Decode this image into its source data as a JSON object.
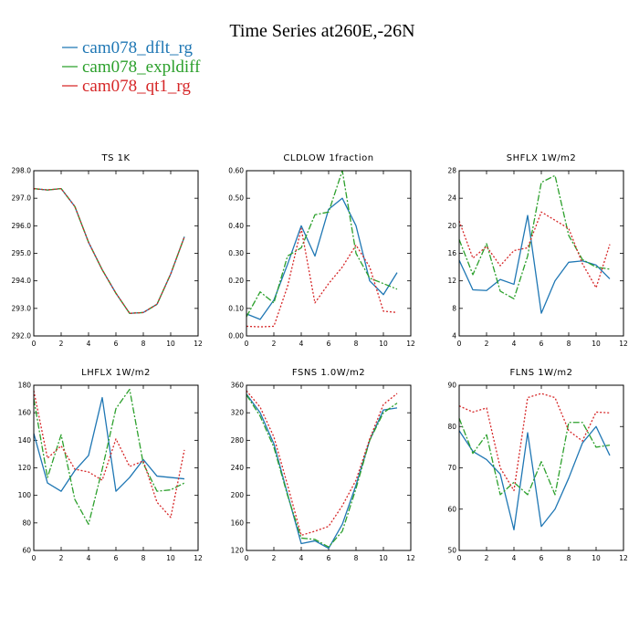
{
  "figure": {
    "title": "Time Series at260E,-26N",
    "legend": [
      {
        "label": "cam078_dflt_rg",
        "color": "#1f77b4"
      },
      {
        "label": "cam078_expldiff",
        "color": "#2ca02c"
      },
      {
        "label": "cam078_qt1_rg",
        "color": "#d62728"
      }
    ]
  },
  "chart_data": [
    {
      "type": "line",
      "title": "TS   1K",
      "x": [
        0,
        1,
        2,
        3,
        4,
        5,
        6,
        7,
        8,
        9,
        10,
        11
      ],
      "xlim": [
        0,
        12
      ],
      "xticks": [
        "0",
        "2",
        "4",
        "6",
        "8",
        "10",
        "12"
      ],
      "ylim": [
        292,
        298
      ],
      "yticks": [
        "292.0",
        "293.0",
        "294.0",
        "295.0",
        "296.0",
        "297.0",
        "298.0"
      ],
      "series": [
        {
          "color": "#1f77b4",
          "dash": "solid",
          "values": [
            297.35,
            297.3,
            297.35,
            296.7,
            295.4,
            294.4,
            293.55,
            292.82,
            292.85,
            293.15,
            294.25,
            295.6
          ]
        },
        {
          "color": "#2ca02c",
          "dash": "dashdot",
          "values": [
            297.35,
            297.3,
            297.35,
            296.7,
            295.4,
            294.4,
            293.55,
            292.82,
            292.85,
            293.15,
            294.25,
            295.6
          ]
        },
        {
          "color": "#d62728",
          "dash": "dot",
          "values": [
            297.35,
            297.3,
            297.35,
            296.7,
            295.4,
            294.4,
            293.55,
            292.82,
            292.85,
            293.15,
            294.25,
            295.6
          ]
        }
      ]
    },
    {
      "type": "line",
      "title": "CLDLOW   1fraction",
      "x": [
        0,
        1,
        2,
        3,
        4,
        5,
        6,
        7,
        8,
        9,
        10,
        11
      ],
      "xlim": [
        0,
        12
      ],
      "xticks": [
        "0",
        "2",
        "4",
        "6",
        "8",
        "10",
        "12"
      ],
      "ylim": [
        0,
        0.6
      ],
      "yticks": [
        "0.00",
        "0.10",
        "0.20",
        "0.30",
        "0.40",
        "0.50",
        "0.60"
      ],
      "series": [
        {
          "color": "#1f77b4",
          "dash": "solid",
          "values": [
            0.08,
            0.06,
            0.13,
            0.26,
            0.4,
            0.29,
            0.46,
            0.5,
            0.4,
            0.2,
            0.15,
            0.23
          ]
        },
        {
          "color": "#2ca02c",
          "dash": "dashdot",
          "values": [
            0.07,
            0.16,
            0.12,
            0.29,
            0.32,
            0.44,
            0.45,
            0.6,
            0.3,
            0.21,
            0.19,
            0.17
          ]
        },
        {
          "color": "#d62728",
          "dash": "dot",
          "values": [
            0.035,
            0.033,
            0.035,
            0.18,
            0.39,
            0.12,
            0.19,
            0.25,
            0.33,
            0.25,
            0.09,
            0.085
          ]
        }
      ]
    },
    {
      "type": "line",
      "title": "SHFLX   1W/m2",
      "x": [
        0,
        1,
        2,
        3,
        4,
        5,
        6,
        7,
        8,
        9,
        10,
        11
      ],
      "xlim": [
        0,
        12
      ],
      "xticks": [
        "0",
        "2",
        "4",
        "6",
        "8",
        "10",
        "12"
      ],
      "ylim": [
        4,
        28
      ],
      "yticks": [
        "4",
        "8",
        "12",
        "16",
        "20",
        "24",
        "28"
      ],
      "series": [
        {
          "color": "#1f77b4",
          "dash": "solid",
          "values": [
            15,
            10.7,
            10.6,
            12.2,
            11.5,
            21.5,
            7.3,
            12,
            14.7,
            14.9,
            14.3,
            12.3
          ]
        },
        {
          "color": "#2ca02c",
          "dash": "dashdot",
          "values": [
            18,
            12.9,
            17.4,
            10.5,
            9.4,
            15.6,
            26.3,
            27.3,
            18.6,
            15.1,
            14,
            13.7
          ]
        },
        {
          "color": "#d62728",
          "dash": "dot",
          "values": [
            20.7,
            15.3,
            17,
            14.2,
            16.4,
            16.8,
            22,
            20.8,
            19.6,
            14.5,
            11,
            17.3
          ]
        }
      ]
    },
    {
      "type": "line",
      "title": "LHFLX   1W/m2",
      "x": [
        0,
        1,
        2,
        3,
        4,
        5,
        6,
        7,
        8,
        9,
        10,
        11
      ],
      "xlim": [
        0,
        12
      ],
      "xticks": [
        "0",
        "2",
        "4",
        "6",
        "8",
        "10",
        "12"
      ],
      "ylim": [
        60,
        180
      ],
      "yticks": [
        "60",
        "80",
        "100",
        "120",
        "140",
        "160",
        "180"
      ],
      "series": [
        {
          "color": "#1f77b4",
          "dash": "solid",
          "values": [
            145,
            109,
            103,
            118,
            129,
            171,
            103,
            113,
            126,
            114,
            113,
            112
          ]
        },
        {
          "color": "#2ca02c",
          "dash": "dashdot",
          "values": [
            170,
            113,
            144,
            97,
            79,
            119,
            163,
            177,
            123,
            103,
            104,
            109
          ]
        },
        {
          "color": "#d62728",
          "dash": "dot",
          "values": [
            176,
            127,
            136,
            119,
            117,
            111,
            141,
            121,
            125,
            95,
            84,
            133
          ]
        }
      ]
    },
    {
      "type": "line",
      "title": "FSNS   1.0W/m2",
      "x": [
        0,
        1,
        2,
        3,
        4,
        5,
        6,
        7,
        8,
        9,
        10,
        11
      ],
      "xlim": [
        0,
        12
      ],
      "xticks": [
        "0",
        "2",
        "4",
        "6",
        "8",
        "10",
        "12"
      ],
      "ylim": [
        120,
        360
      ],
      "yticks": [
        "120",
        "160",
        "200",
        "240",
        "280",
        "320",
        "360"
      ],
      "series": [
        {
          "color": "#1f77b4",
          "dash": "solid",
          "values": [
            347,
            320,
            275,
            202,
            130,
            134,
            123,
            158,
            215,
            280,
            324,
            327
          ]
        },
        {
          "color": "#2ca02c",
          "dash": "dashdot",
          "values": [
            346,
            315,
            270,
            200,
            138,
            136,
            125,
            148,
            210,
            280,
            320,
            334
          ]
        },
        {
          "color": "#d62728",
          "dash": "dot",
          "values": [
            352,
            328,
            285,
            215,
            142,
            148,
            155,
            185,
            222,
            282,
            332,
            348
          ]
        }
      ]
    },
    {
      "type": "line",
      "title": "FLNS   1W/m2",
      "x": [
        0,
        1,
        2,
        3,
        4,
        5,
        6,
        7,
        8,
        9,
        10,
        11
      ],
      "xlim": [
        0,
        12
      ],
      "xticks": [
        "0",
        "2",
        "4",
        "6",
        "8",
        "10",
        "12"
      ],
      "ylim": [
        50,
        90
      ],
      "yticks": [
        "50",
        "60",
        "70",
        "80",
        "90"
      ],
      "series": [
        {
          "color": "#1f77b4",
          "dash": "solid",
          "values": [
            79,
            74,
            72,
            68.5,
            55,
            78.5,
            55.8,
            60,
            67.5,
            76,
            80,
            73
          ]
        },
        {
          "color": "#2ca02c",
          "dash": "dashdot",
          "values": [
            82,
            73.5,
            78,
            63.5,
            66.5,
            63.5,
            71.5,
            63.5,
            81,
            81,
            75,
            75.5
          ]
        },
        {
          "color": "#d62728",
          "dash": "dot",
          "values": [
            85,
            83.5,
            84.5,
            70,
            64.5,
            87,
            88,
            87,
            79,
            76.5,
            83.5,
            83.3
          ]
        }
      ]
    }
  ]
}
